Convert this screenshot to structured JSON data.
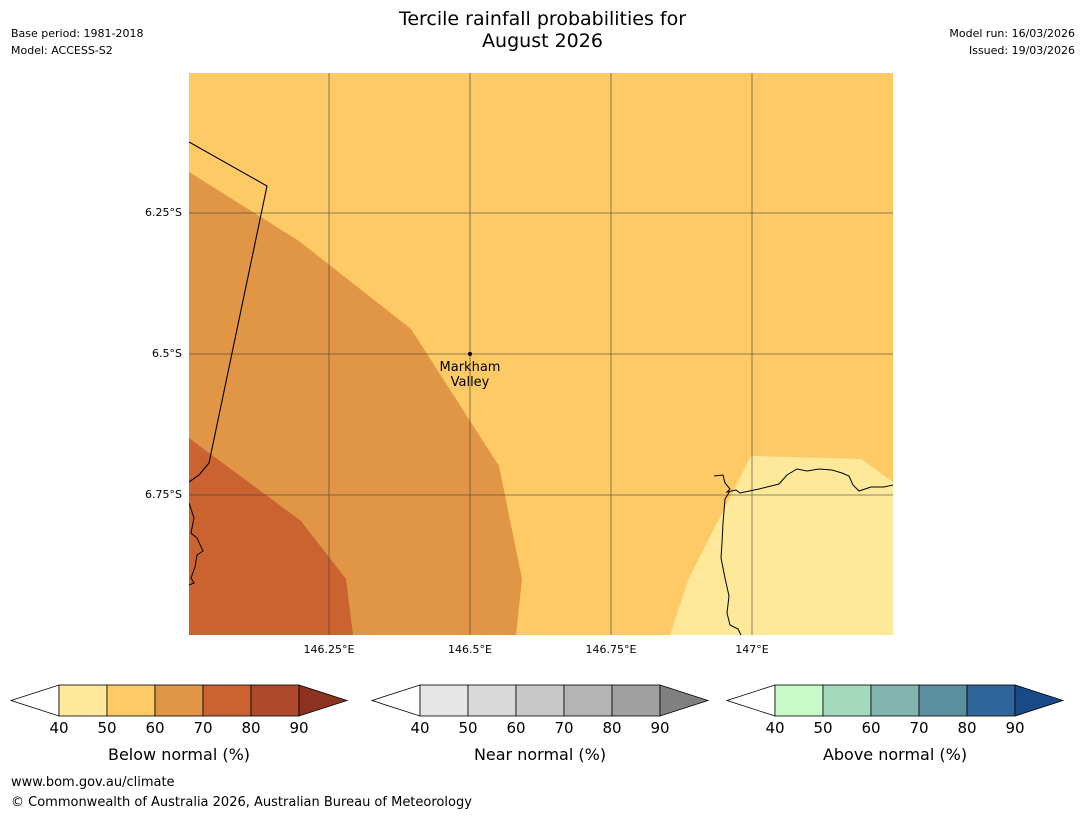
{
  "header": {
    "title_line1": "Tercile rainfall probabilities for",
    "title_line2": "August 2026",
    "base_period": "Base period: 1981-2018",
    "model": "Model: ACCESS-S2",
    "model_run": "Model run: 16/03/2026",
    "issued": "Issued: 19/03/2026"
  },
  "map": {
    "lat_labels": [
      "6.25°S",
      "6.5°S",
      "6.75°S"
    ],
    "lon_labels": [
      "146.25°E",
      "146.5°E",
      "146.75°E",
      "147°E"
    ],
    "place": {
      "line1": "Markham",
      "line2": "Valley"
    },
    "colors": {
      "base": "#fdca66",
      "band_50_60": "#e09644",
      "band_60_70": "#cb6331",
      "band_40_50_light": "#fee99b"
    }
  },
  "colorbars": [
    {
      "label": "Below normal (%)",
      "ticks": [
        "40",
        "50",
        "60",
        "70",
        "80",
        "90"
      ],
      "colors": [
        "#fee99b",
        "#fdca66",
        "#e09644",
        "#cb6331",
        "#ae4a2b"
      ],
      "extend_color": "#8c3220"
    },
    {
      "label": "Near normal (%)",
      "ticks": [
        "40",
        "50",
        "60",
        "70",
        "80",
        "90"
      ],
      "colors": [
        "#e6e6e6",
        "#d9d9d9",
        "#c8c8c8",
        "#b4b4b4",
        "#a0a0a0"
      ],
      "extend_color": "#808080"
    },
    {
      "label": "Above normal (%)",
      "ticks": [
        "40",
        "50",
        "60",
        "70",
        "80",
        "90"
      ],
      "colors": [
        "#c8f9c8",
        "#a3d9bc",
        "#82b5b0",
        "#5a8fa0",
        "#2f6598"
      ],
      "extend_color": "#174a86"
    }
  ],
  "footer": {
    "url": "www.bom.gov.au/climate",
    "copyright": "© Commonwealth of Australia 2026, Australian Bureau of Meteorology"
  }
}
